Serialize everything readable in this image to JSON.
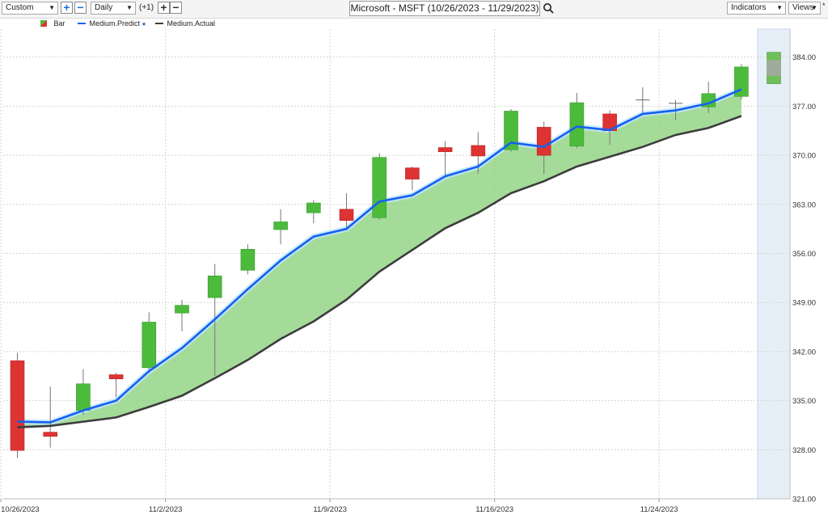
{
  "toolbar": {
    "layout_select": "Custom",
    "period_select": "Daily",
    "period_offset": "(+1)",
    "chart_title": "Microsoft - MSFT (10/26/2023 - 11/29/2023)",
    "indicators_label": "Indicators",
    "views_label": "Views"
  },
  "legend": {
    "bar": "Bar",
    "predict": "Medium.Predict",
    "actual": "Medium.Actual"
  },
  "colors": {
    "up": "#4cbb3c",
    "down": "#dd3333",
    "predict": "#1560f0",
    "actual": "#3c3c3c",
    "band": "#8fd27f",
    "forecast_bg": "#e6eef8"
  },
  "chart_data": {
    "type": "candlestick",
    "title": "Microsoft - MSFT (10/26/2023 - 11/29/2023)",
    "ylim": [
      321,
      388
    ],
    "y_ticks": [
      "321.00",
      "328.00",
      "335.00",
      "342.00",
      "349.00",
      "356.00",
      "363.00",
      "370.00",
      "377.00",
      "384.00"
    ],
    "x_tick_labels": [
      "10/26/2023",
      "11/2/2023",
      "11/9/2023",
      "11/16/2023",
      "11/24/2023"
    ],
    "x_tick_positions": [
      0,
      5,
      10,
      15,
      20
    ],
    "grid": true,
    "candles": [
      {
        "date": "10/26/2023",
        "open": 340.7,
        "high": 341.8,
        "low": 326.8,
        "close": 327.9
      },
      {
        "date": "10/27/2023",
        "open": 330.5,
        "high": 337.0,
        "low": 328.3,
        "close": 329.9
      },
      {
        "date": "10/30/2023",
        "open": 333.6,
        "high": 339.5,
        "low": 333.0,
        "close": 337.4
      },
      {
        "date": "10/31/2023",
        "open": 338.7,
        "high": 339.0,
        "low": 335.5,
        "close": 338.1
      },
      {
        "date": "11/1/2023",
        "open": 339.7,
        "high": 347.6,
        "low": 339.1,
        "close": 346.2
      },
      {
        "date": "11/2/2023",
        "open": 347.5,
        "high": 349.4,
        "low": 344.9,
        "close": 348.6
      },
      {
        "date": "11/3/2023",
        "open": 349.7,
        "high": 354.5,
        "low": 338.5,
        "close": 352.8
      },
      {
        "date": "11/6/2023",
        "open": 353.6,
        "high": 357.3,
        "low": 353.0,
        "close": 356.6
      },
      {
        "date": "11/7/2023",
        "open": 359.4,
        "high": 362.3,
        "low": 357.3,
        "close": 360.5
      },
      {
        "date": "11/8/2023",
        "open": 361.8,
        "high": 363.6,
        "low": 360.3,
        "close": 363.2
      },
      {
        "date": "11/9/2023",
        "open": 362.3,
        "high": 364.6,
        "low": 359.6,
        "close": 360.7
      },
      {
        "date": "11/10/2023",
        "open": 361.1,
        "high": 370.3,
        "low": 360.8,
        "close": 369.7
      },
      {
        "date": "11/13/2023",
        "open": 368.2,
        "high": 368.4,
        "low": 365.0,
        "close": 366.6
      },
      {
        "date": "11/14/2023",
        "open": 371.1,
        "high": 372.0,
        "low": 367.0,
        "close": 370.5
      },
      {
        "date": "11/15/2023",
        "open": 371.4,
        "high": 373.3,
        "low": 367.4,
        "close": 369.9
      },
      {
        "date": "11/16/2023",
        "open": 370.8,
        "high": 376.6,
        "low": 370.5,
        "close": 376.3
      },
      {
        "date": "11/17/2023",
        "open": 374.0,
        "high": 374.8,
        "low": 367.3,
        "close": 370.0
      },
      {
        "date": "11/20/2023",
        "open": 371.3,
        "high": 378.9,
        "low": 371.0,
        "close": 377.5
      },
      {
        "date": "11/21/2023",
        "open": 375.9,
        "high": 376.4,
        "low": 371.5,
        "close": 373.5
      },
      {
        "date": "11/22/2023",
        "open": 377.9,
        "high": 379.7,
        "low": 376.0,
        "close": 377.9
      },
      {
        "date": "11/24/2023",
        "open": 377.3,
        "high": 377.9,
        "low": 375.0,
        "close": 377.4
      },
      {
        "date": "11/27/2023",
        "open": 376.9,
        "high": 380.5,
        "low": 376.0,
        "close": 378.8
      },
      {
        "date": "11/28/2023",
        "open": 378.4,
        "high": 383.0,
        "low": 378.0,
        "close": 382.6
      }
    ],
    "forecast_box": {
      "low": 380.2,
      "high": 384.7
    },
    "series": [
      {
        "name": "Medium.Predict",
        "values": [
          332.0,
          331.9,
          333.6,
          335.0,
          339.2,
          342.5,
          346.6,
          350.9,
          355.0,
          358.4,
          359.5,
          363.4,
          364.3,
          367.0,
          368.4,
          371.8,
          371.2,
          374.1,
          373.6,
          375.9,
          376.4,
          377.4,
          379.4
        ]
      },
      {
        "name": "Medium.Actual",
        "values": [
          331.2,
          331.4,
          332.0,
          332.6,
          334.1,
          335.7,
          338.2,
          340.8,
          343.8,
          346.3,
          349.4,
          353.4,
          356.5,
          359.6,
          361.8,
          364.6,
          366.3,
          368.4,
          369.8,
          371.2,
          372.9,
          373.9,
          375.6
        ]
      }
    ]
  }
}
